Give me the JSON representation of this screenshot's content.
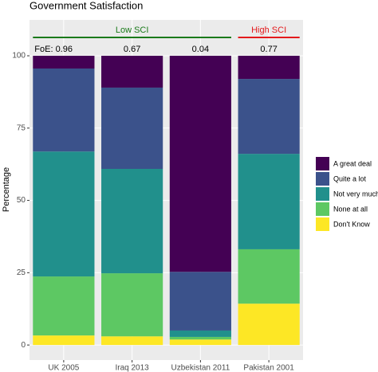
{
  "chart_data": {
    "type": "stacked_bar",
    "title": "Government Satisfaction",
    "y_label": "Percentage",
    "categories": [
      "UK 2005",
      "Iraq 2013",
      "Uzbekistan 2011",
      "Pakistan 2001"
    ],
    "series": [
      {
        "name": "A great deal",
        "color": "#440154",
        "values": [
          4.4,
          11.0,
          74.7,
          8.0
        ]
      },
      {
        "name": "Quite a lot",
        "color": "#3b528b",
        "values": [
          28.7,
          28.1,
          20.3,
          25.9
        ]
      },
      {
        "name": "Not very much",
        "color": "#21908c",
        "values": [
          43.2,
          36.1,
          2.2,
          33.0
        ]
      },
      {
        "name": "None at all",
        "color": "#5dc863",
        "values": [
          20.4,
          21.8,
          0.9,
          18.8
        ]
      },
      {
        "name": "Don't Know",
        "color": "#fde725",
        "values": [
          3.3,
          3.0,
          1.9,
          14.3
        ]
      }
    ],
    "bar_labels": [
      "FoE: 0.96",
      "0.67",
      "0.04",
      "0.77"
    ],
    "groups": [
      {
        "label": "Low SCI",
        "color": "#1a7a1a"
      },
      {
        "label": "High SCI",
        "color": "#e41a1c"
      }
    ],
    "ylim": [
      -5.2,
      112.4
    ],
    "yticks": [
      0,
      25,
      50,
      75,
      100
    ],
    "grid": true
  }
}
